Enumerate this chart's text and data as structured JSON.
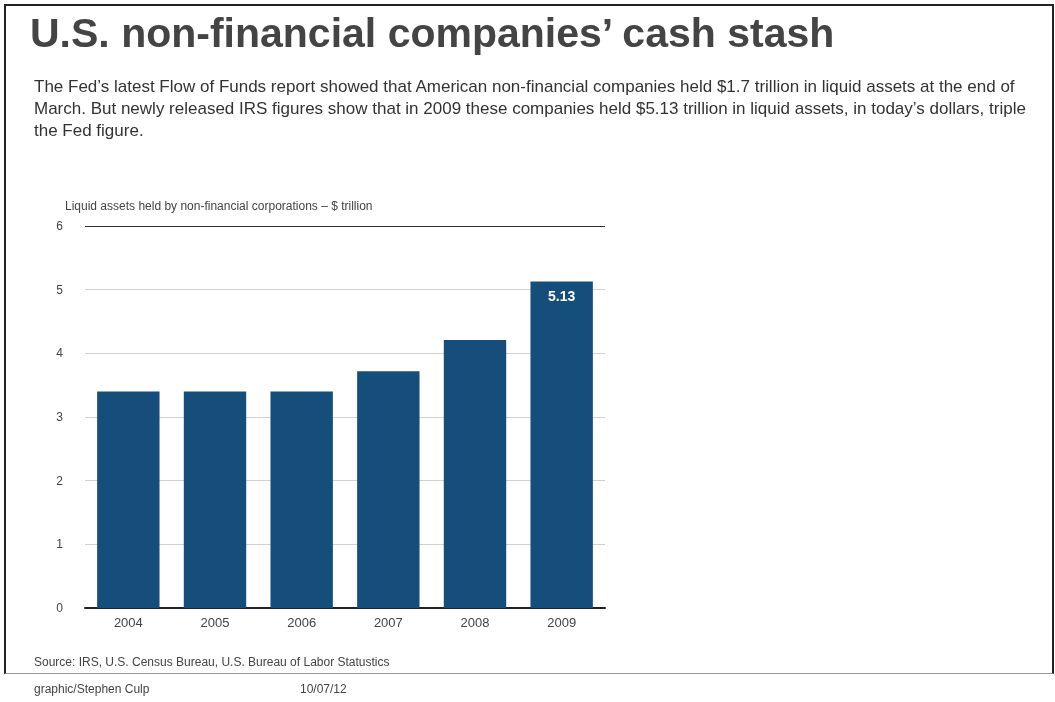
{
  "chart_data": {
    "type": "bar",
    "title": "U.S. non-financial companies’ cash stash",
    "subtitle": "The Fed’s latest Flow of Funds report showed that American non-financial companies held $1.7 trillion in liquid assets at the end of March. But newly released IRS figures show that in 2009 these companies held $5.13 trillion in liquid assets, in today’s dollars, triple the Fed figure.",
    "ylabel": "Liquid assets held by non-financial corporations – $ trillion",
    "categories": [
      "2004",
      "2005",
      "2006",
      "2007",
      "2008",
      "2009"
    ],
    "values": [
      3.4,
      3.4,
      3.4,
      3.72,
      4.21,
      5.13
    ],
    "value_labels": [
      null,
      null,
      null,
      null,
      null,
      "5.13"
    ],
    "color": "#154e7a",
    "ylim": [
      0,
      6
    ],
    "yticks": [
      0,
      1,
      2,
      3,
      4,
      5,
      6
    ],
    "grid": "y",
    "annotations": [
      "Source:  IRS, U.S. Census Bureau, U.S. Bureau of Labor Statustics",
      "graphic/Stephen Culp",
      "10/07/12"
    ]
  }
}
